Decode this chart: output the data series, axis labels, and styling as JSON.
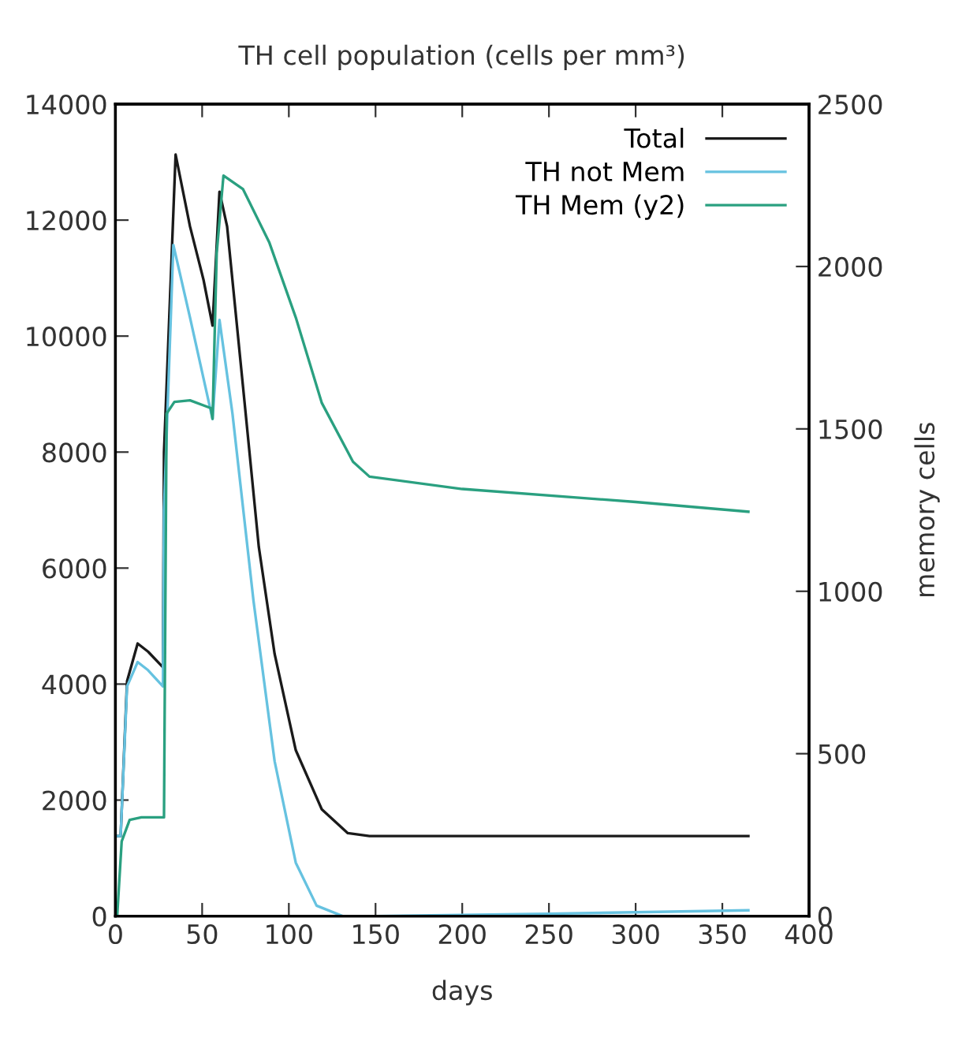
{
  "chart_data": {
    "type": "line",
    "title": "TH cell population (cells per mm³)",
    "xlabel": "days",
    "y2label": "memory cells",
    "xlim": [
      0,
      400
    ],
    "xticks": [
      0,
      50,
      100,
      150,
      200,
      250,
      300,
      350,
      400
    ],
    "ylim": [
      0,
      14000
    ],
    "yticks": [
      0,
      2000,
      4000,
      6000,
      8000,
      10000,
      12000,
      14000
    ],
    "y2lim": [
      0,
      2500
    ],
    "y2ticks": [
      0,
      500,
      1000,
      1500,
      2000,
      2500
    ],
    "grid": false,
    "legend": "top right",
    "marker": "none",
    "line_style": "solid",
    "series": [
      {
        "name": "Total",
        "color": "#1a1a1a",
        "x": [
          0,
          3,
          6.7,
          12.8,
          18.8,
          27.4,
          28,
          34.7,
          43,
          50.8,
          56,
          60,
          64.4,
          73.6,
          82.7,
          91.8,
          104,
          119,
          134,
          146.5,
          200,
          300,
          365
        ],
        "values": [
          1380,
          1380,
          4050,
          4700,
          4560,
          4290,
          8000,
          13130,
          11890,
          10970,
          10180,
          12490,
          11890,
          9120,
          6360,
          4520,
          2860,
          1840,
          1430,
          1380,
          1380,
          1380,
          1380
        ]
      },
      {
        "name": "TH not Mem",
        "color": "#66c2e0",
        "x": [
          0,
          3,
          6.7,
          12.8,
          18.8,
          27.4,
          28,
          33.4,
          43,
          56,
          60,
          67.5,
          79.6,
          91.8,
          104,
          116,
          131,
          150,
          250,
          365
        ],
        "values": [
          1380,
          1380,
          3960,
          4380,
          4240,
          3960,
          7000,
          11570,
          10320,
          8570,
          10280,
          8660,
          5440,
          2670,
          920,
          180,
          0,
          0,
          40,
          100
        ]
      },
      {
        "name": "TH Mem (y2)",
        "color": "#2aa080",
        "axis": "y2",
        "x": [
          0,
          1,
          3.6,
          8.2,
          15,
          28,
          29.5,
          34,
          43,
          55,
          56,
          58.4,
          62.3,
          73.6,
          88.8,
          104,
          119,
          137,
          146.5,
          200,
          300,
          365
        ],
        "values": [
          0,
          0,
          230,
          296,
          304,
          304,
          1547,
          1583,
          1588,
          1564,
          1531,
          2041,
          2280,
          2238,
          2073,
          1843,
          1580,
          1399,
          1353,
          1315,
          1275,
          1245
        ]
      }
    ]
  }
}
